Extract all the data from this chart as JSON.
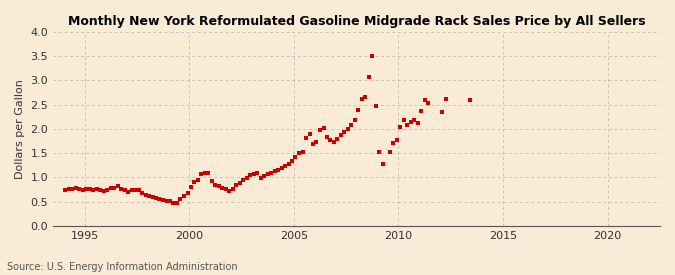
{
  "title": "Monthly New York Reformulated Gasoline Midgrade Rack Sales Price by All Sellers",
  "ylabel": "Dollars per Gallon",
  "source": "Source: U.S. Energy Information Administration",
  "background_color": "#faebd7",
  "marker_color": "#cc0000",
  "xlim_start": 1993.5,
  "xlim_end": 2022.5,
  "ylim": [
    0.0,
    4.0
  ],
  "yticks": [
    0.0,
    0.5,
    1.0,
    1.5,
    2.0,
    2.5,
    3.0,
    3.5,
    4.0
  ],
  "xticks": [
    1995,
    2000,
    2005,
    2010,
    2015,
    2020
  ],
  "data": [
    [
      1994.08,
      0.75
    ],
    [
      1994.25,
      0.77
    ],
    [
      1994.42,
      0.76
    ],
    [
      1994.58,
      0.79
    ],
    [
      1994.75,
      0.77
    ],
    [
      1994.92,
      0.74
    ],
    [
      1995.08,
      0.77
    ],
    [
      1995.25,
      0.76
    ],
    [
      1995.42,
      0.74
    ],
    [
      1995.58,
      0.76
    ],
    [
      1995.75,
      0.73
    ],
    [
      1995.92,
      0.71
    ],
    [
      1996.08,
      0.75
    ],
    [
      1996.25,
      0.78
    ],
    [
      1996.42,
      0.79
    ],
    [
      1996.58,
      0.82
    ],
    [
      1996.75,
      0.77
    ],
    [
      1996.92,
      0.73
    ],
    [
      1997.08,
      0.7
    ],
    [
      1997.25,
      0.73
    ],
    [
      1997.42,
      0.74
    ],
    [
      1997.58,
      0.73
    ],
    [
      1997.75,
      0.68
    ],
    [
      1997.92,
      0.64
    ],
    [
      1998.08,
      0.61
    ],
    [
      1998.25,
      0.59
    ],
    [
      1998.42,
      0.57
    ],
    [
      1998.58,
      0.56
    ],
    [
      1998.75,
      0.54
    ],
    [
      1998.92,
      0.52
    ],
    [
      1999.08,
      0.51
    ],
    [
      1999.25,
      0.47
    ],
    [
      1999.42,
      0.47
    ],
    [
      1999.58,
      0.56
    ],
    [
      1999.75,
      0.62
    ],
    [
      1999.92,
      0.68
    ],
    [
      2000.08,
      0.8
    ],
    [
      2000.25,
      0.91
    ],
    [
      2000.42,
      0.95
    ],
    [
      2000.58,
      1.06
    ],
    [
      2000.75,
      1.1
    ],
    [
      2000.92,
      1.09
    ],
    [
      2001.08,
      0.93
    ],
    [
      2001.25,
      0.85
    ],
    [
      2001.42,
      0.83
    ],
    [
      2001.58,
      0.78
    ],
    [
      2001.75,
      0.76
    ],
    [
      2001.92,
      0.72
    ],
    [
      2002.08,
      0.77
    ],
    [
      2002.25,
      0.84
    ],
    [
      2002.42,
      0.89
    ],
    [
      2002.58,
      0.94
    ],
    [
      2002.75,
      0.99
    ],
    [
      2002.92,
      1.04
    ],
    [
      2003.08,
      1.07
    ],
    [
      2003.25,
      1.1
    ],
    [
      2003.42,
      0.98
    ],
    [
      2003.58,
      1.03
    ],
    [
      2003.75,
      1.08
    ],
    [
      2003.92,
      1.1
    ],
    [
      2004.08,
      1.13
    ],
    [
      2004.25,
      1.16
    ],
    [
      2004.42,
      1.2
    ],
    [
      2004.58,
      1.24
    ],
    [
      2004.75,
      1.28
    ],
    [
      2004.92,
      1.33
    ],
    [
      2005.08,
      1.43
    ],
    [
      2005.25,
      1.5
    ],
    [
      2005.42,
      1.53
    ],
    [
      2005.58,
      1.82
    ],
    [
      2005.75,
      1.9
    ],
    [
      2005.92,
      1.68
    ],
    [
      2006.08,
      1.74
    ],
    [
      2006.25,
      1.97
    ],
    [
      2006.42,
      2.01
    ],
    [
      2006.58,
      1.83
    ],
    [
      2006.75,
      1.78
    ],
    [
      2006.92,
      1.73
    ],
    [
      2007.08,
      1.79
    ],
    [
      2007.25,
      1.88
    ],
    [
      2007.42,
      1.93
    ],
    [
      2007.58,
      1.99
    ],
    [
      2007.75,
      2.08
    ],
    [
      2007.92,
      2.18
    ],
    [
      2008.08,
      2.4
    ],
    [
      2008.25,
      2.62
    ],
    [
      2008.42,
      2.66
    ],
    [
      2008.58,
      3.08
    ],
    [
      2008.75,
      3.5
    ],
    [
      2008.92,
      2.47
    ],
    [
      2009.08,
      1.52
    ],
    [
      2009.25,
      1.27
    ],
    [
      2009.58,
      1.53
    ],
    [
      2009.75,
      1.71
    ],
    [
      2009.92,
      1.78
    ],
    [
      2010.08,
      2.04
    ],
    [
      2010.25,
      2.18
    ],
    [
      2010.42,
      2.09
    ],
    [
      2010.58,
      2.14
    ],
    [
      2010.75,
      2.19
    ],
    [
      2010.92,
      2.12
    ],
    [
      2011.08,
      2.36
    ],
    [
      2011.25,
      2.6
    ],
    [
      2011.42,
      2.54
    ],
    [
      2012.08,
      2.34
    ],
    [
      2012.25,
      2.62
    ],
    [
      2013.42,
      2.6
    ]
  ]
}
